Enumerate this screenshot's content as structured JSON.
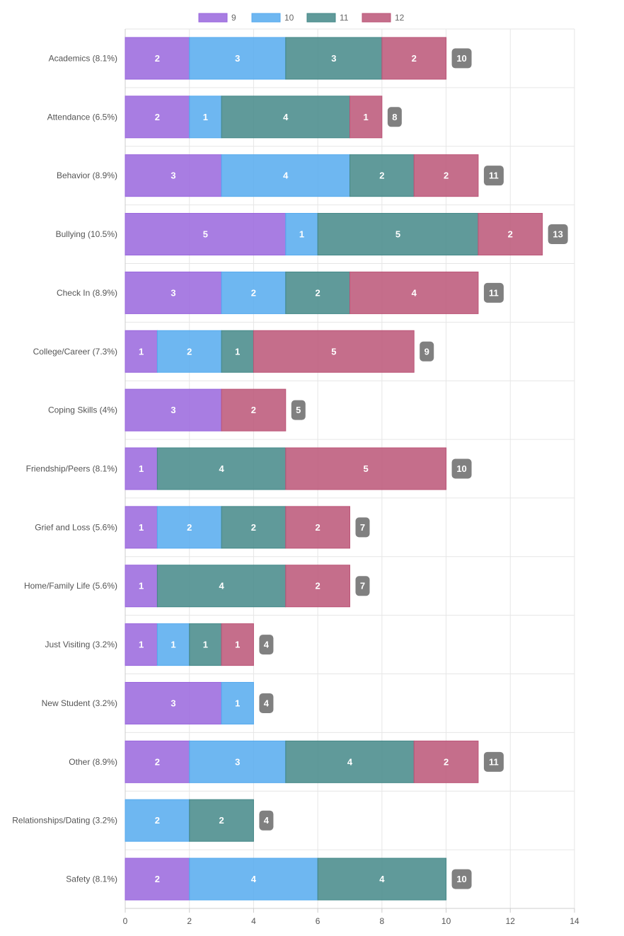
{
  "chart_data": {
    "type": "bar",
    "orientation": "horizontal",
    "stacked": true,
    "categories": [
      "Academics (8.1%)",
      "Attendance (6.5%)",
      "Behavior (8.9%)",
      "Bullying (10.5%)",
      "Check In (8.9%)",
      "College/Career (7.3%)",
      "Coping Skills (4%)",
      "Friendship/Peers (8.1%)",
      "Grief and Loss (5.6%)",
      "Home/Family Life (5.6%)",
      "Just Visiting (3.2%)",
      "New Student (3.2%)",
      "Other (8.9%)",
      "Relationships/Dating (3.2%)",
      "Safety (8.1%)"
    ],
    "series": [
      {
        "name": "9",
        "color": "#9966dd",
        "values": [
          2,
          2,
          3,
          5,
          3,
          1,
          3,
          1,
          1,
          1,
          1,
          3,
          2,
          0,
          2
        ]
      },
      {
        "name": "10",
        "color": "#55aaee",
        "values": [
          3,
          1,
          4,
          1,
          2,
          2,
          0,
          0,
          2,
          0,
          1,
          1,
          3,
          2,
          4
        ]
      },
      {
        "name": "11",
        "color": "#448888",
        "values": [
          3,
          4,
          2,
          5,
          2,
          1,
          0,
          4,
          2,
          4,
          1,
          0,
          4,
          2,
          4
        ]
      },
      {
        "name": "12",
        "color": "#bb5577",
        "values": [
          2,
          1,
          2,
          2,
          4,
          5,
          2,
          5,
          2,
          2,
          1,
          0,
          2,
          0,
          0
        ]
      }
    ],
    "totals": [
      10,
      8,
      11,
      13,
      11,
      9,
      5,
      10,
      7,
      7,
      4,
      4,
      11,
      4,
      10
    ],
    "xlim": [
      0,
      14
    ],
    "xticks": [
      0,
      2,
      4,
      6,
      8,
      10,
      12,
      14
    ],
    "grid": true,
    "legend_position": "top",
    "title": "",
    "xlabel": "",
    "ylabel": ""
  }
}
